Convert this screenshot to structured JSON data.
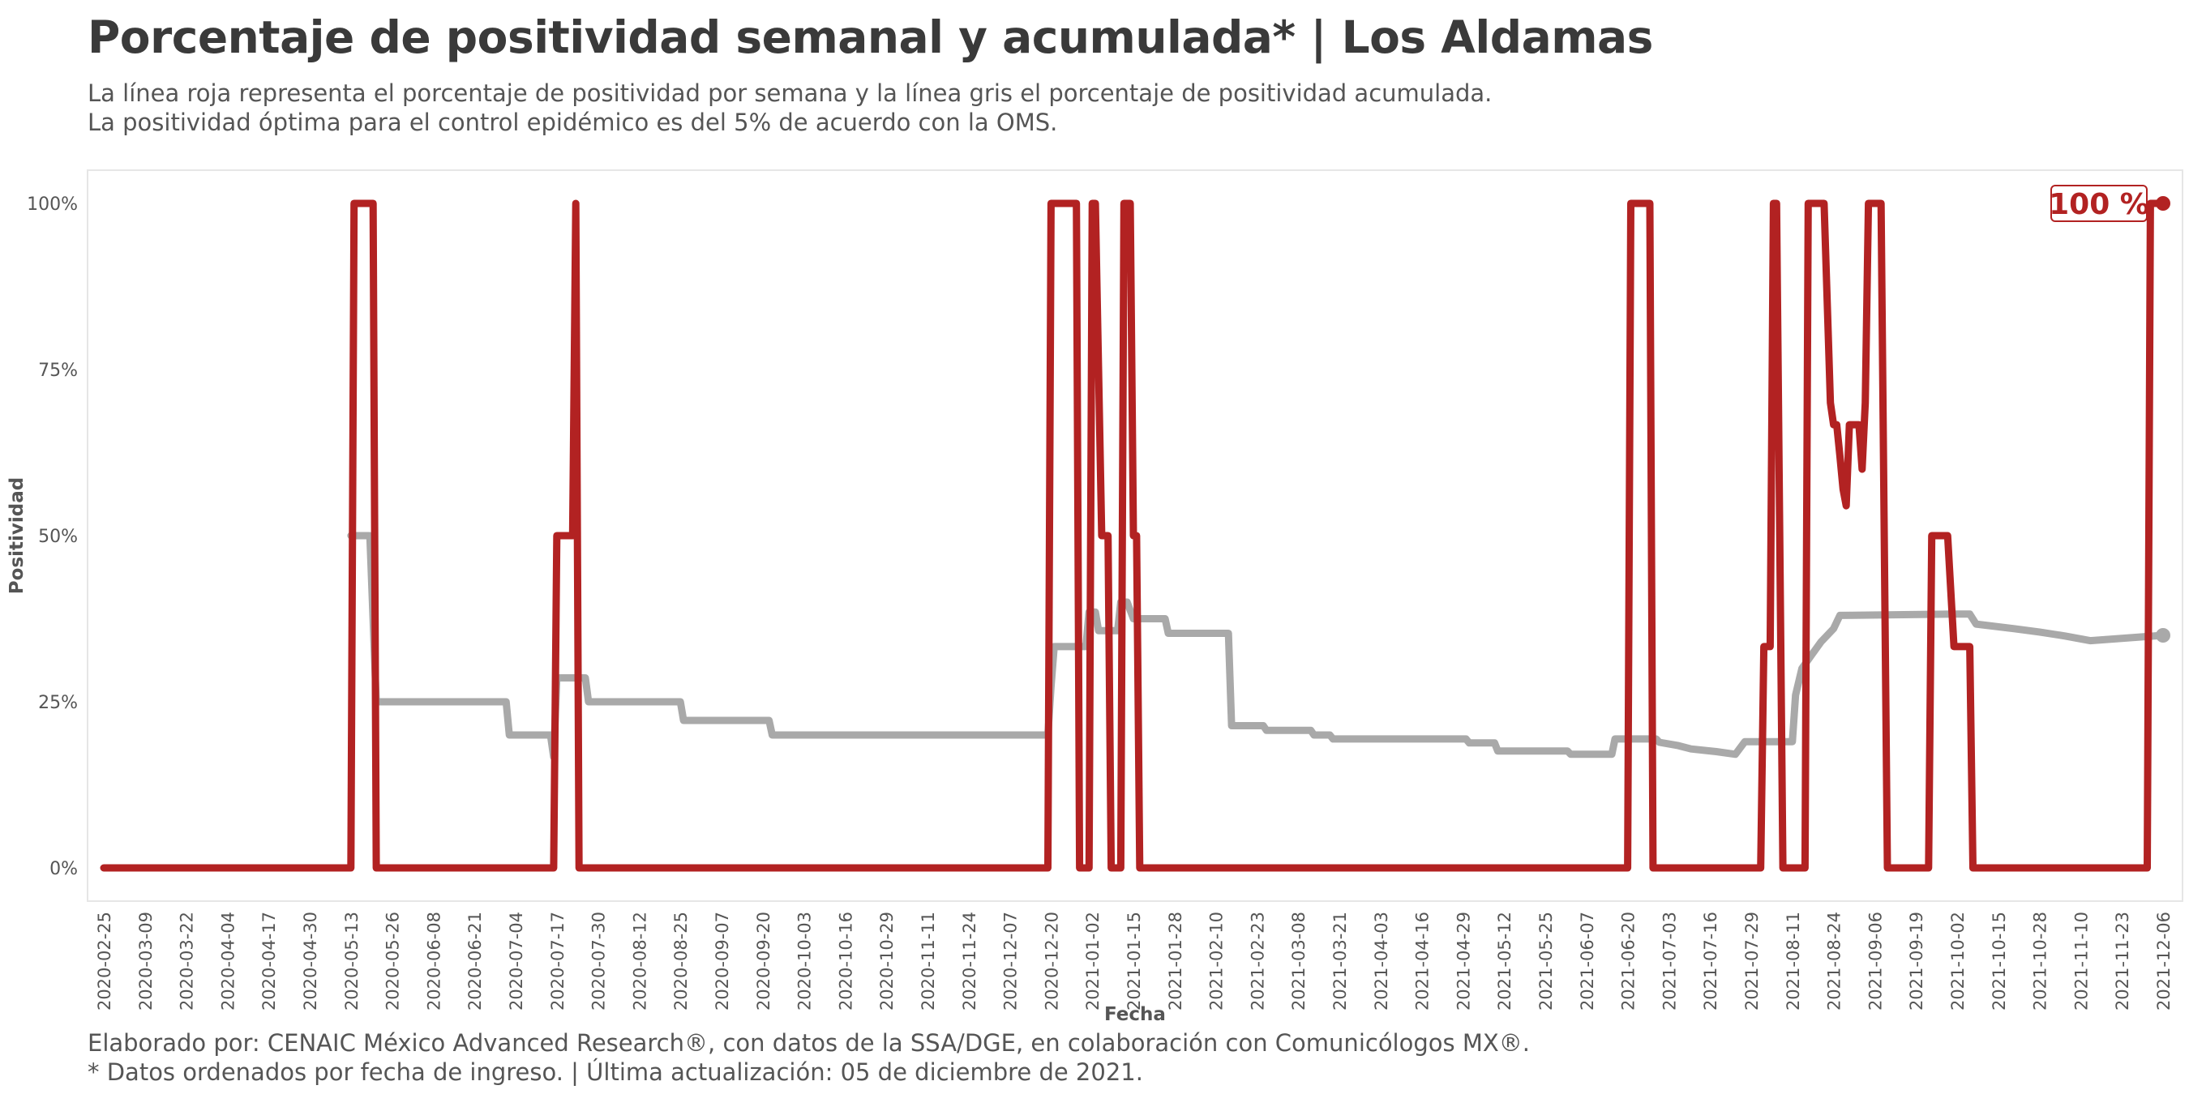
{
  "header": {
    "title": "Porcentaje de positividad semanal y acumulada* | Los Aldamas",
    "subtitle_line1": "La línea roja representa el porcentaje de positividad por semana y la línea gris el porcentaje de positividad acumulada.",
    "subtitle_line2": "La positividad óptima para el control epidémico es del 5% de acuerdo con la OMS."
  },
  "footer": {
    "caption_line1": "Elaborado por: CENAIC México Advanced Research®, con datos de la SSA/DGE, en colaboración con Comunicólogos MX®.",
    "caption_line2": "* Datos ordenados por fecha de ingreso. | Última actualización: 05 de diciembre de 2021."
  },
  "colors": {
    "weekly": "#b22222",
    "cumulative": "#a9a9a9",
    "panel_border": "#e6e6e6"
  },
  "chart_data": {
    "type": "line",
    "xlabel": "Fecha",
    "ylabel": "Positividad",
    "x_range": [
      "2020-02-25",
      "2021-12-06"
    ],
    "ylim": [
      0,
      100
    ],
    "y_ticks": [
      0,
      25,
      50,
      75,
      100
    ],
    "y_tick_labels": [
      "0%",
      "25%",
      "50%",
      "75%",
      "100%"
    ],
    "x_ticks": [
      "2020-02-25",
      "2020-03-09",
      "2020-03-22",
      "2020-04-04",
      "2020-04-17",
      "2020-04-30",
      "2020-05-13",
      "2020-05-26",
      "2020-06-08",
      "2020-06-21",
      "2020-07-04",
      "2020-07-17",
      "2020-07-30",
      "2020-08-12",
      "2020-08-25",
      "2020-09-07",
      "2020-09-20",
      "2020-10-03",
      "2020-10-16",
      "2020-10-29",
      "2020-11-11",
      "2020-11-24",
      "2020-12-07",
      "2020-12-20",
      "2021-01-02",
      "2021-01-15",
      "2021-01-28",
      "2021-02-10",
      "2021-02-23",
      "2021-03-08",
      "2021-03-21",
      "2021-04-03",
      "2021-04-16",
      "2021-04-29",
      "2021-05-12",
      "2021-05-25",
      "2021-06-07",
      "2021-06-20",
      "2021-07-03",
      "2021-07-16",
      "2021-07-29",
      "2021-08-11",
      "2021-08-24",
      "2021-09-06",
      "2021-09-19",
      "2021-10-02",
      "2021-10-15",
      "2021-10-28",
      "2021-11-10",
      "2021-11-23",
      "2021-12-06"
    ],
    "end_label": "100 %",
    "grid": false,
    "series": [
      {
        "key": "weekly",
        "points": [
          [
            "2020-02-25",
            0
          ],
          [
            "2020-05-13",
            0
          ],
          [
            "2020-05-14",
            100
          ],
          [
            "2020-05-20",
            100
          ],
          [
            "2020-05-21",
            0
          ],
          [
            "2020-07-16",
            0
          ],
          [
            "2020-07-17",
            50
          ],
          [
            "2020-07-22",
            50
          ],
          [
            "2020-07-23",
            100
          ],
          [
            "2020-07-24",
            0
          ],
          [
            "2020-12-19",
            0
          ],
          [
            "2020-12-20",
            100
          ],
          [
            "2020-12-28",
            100
          ],
          [
            "2020-12-29",
            0
          ],
          [
            "2021-01-01",
            0
          ],
          [
            "2021-01-02",
            100
          ],
          [
            "2021-01-03",
            100
          ],
          [
            "2021-01-05",
            50
          ],
          [
            "2021-01-07",
            50
          ],
          [
            "2021-01-08",
            0
          ],
          [
            "2021-01-11",
            0
          ],
          [
            "2021-01-12",
            100
          ],
          [
            "2021-01-14",
            100
          ],
          [
            "2021-01-15",
            50
          ],
          [
            "2021-01-16",
            50
          ],
          [
            "2021-01-17",
            0
          ],
          [
            "2021-06-20",
            0
          ],
          [
            "2021-06-21",
            100
          ],
          [
            "2021-06-27",
            100
          ],
          [
            "2021-06-28",
            0
          ],
          [
            "2021-08-01",
            0
          ],
          [
            "2021-08-02",
            33.3
          ],
          [
            "2021-08-04",
            33.3
          ],
          [
            "2021-08-05",
            100
          ],
          [
            "2021-08-06",
            100
          ],
          [
            "2021-08-08",
            0
          ],
          [
            "2021-08-15",
            0
          ],
          [
            "2021-08-16",
            100
          ],
          [
            "2021-08-21",
            100
          ],
          [
            "2021-08-23",
            70
          ],
          [
            "2021-08-24",
            66.7
          ],
          [
            "2021-08-25",
            66.7
          ],
          [
            "2021-08-26",
            62
          ],
          [
            "2021-08-27",
            57
          ],
          [
            "2021-08-28",
            54.5
          ],
          [
            "2021-08-29",
            66.7
          ],
          [
            "2021-09-01",
            66.7
          ],
          [
            "2021-09-02",
            60
          ],
          [
            "2021-09-03",
            70
          ],
          [
            "2021-09-04",
            100
          ],
          [
            "2021-09-08",
            100
          ],
          [
            "2021-09-10",
            0
          ],
          [
            "2021-09-23",
            0
          ],
          [
            "2021-09-24",
            50
          ],
          [
            "2021-09-29",
            50
          ],
          [
            "2021-10-01",
            33.3
          ],
          [
            "2021-10-06",
            33.3
          ],
          [
            "2021-10-07",
            0
          ],
          [
            "2021-12-01",
            0
          ],
          [
            "2021-12-02",
            100
          ],
          [
            "2021-12-06",
            100
          ]
        ]
      },
      {
        "key": "cumulative",
        "points": [
          [
            "2020-05-13",
            50
          ],
          [
            "2020-05-19",
            50
          ],
          [
            "2020-05-21",
            25
          ],
          [
            "2020-07-01",
            25
          ],
          [
            "2020-07-02",
            20
          ],
          [
            "2020-07-15",
            20
          ],
          [
            "2020-07-16",
            16.7
          ],
          [
            "2020-07-17",
            28.6
          ],
          [
            "2020-07-26",
            28.6
          ],
          [
            "2020-07-27",
            25
          ],
          [
            "2020-08-25",
            25
          ],
          [
            "2020-08-26",
            22.2
          ],
          [
            "2020-09-22",
            22.2
          ],
          [
            "2020-09-23",
            20
          ],
          [
            "2020-12-19",
            20
          ],
          [
            "2020-12-20",
            27.3
          ],
          [
            "2020-12-21",
            33.3
          ],
          [
            "2020-12-31",
            33.3
          ],
          [
            "2021-01-01",
            38.5
          ],
          [
            "2021-01-03",
            38.5
          ],
          [
            "2021-01-04",
            35.7
          ],
          [
            "2021-01-10",
            35.7
          ],
          [
            "2021-01-11",
            40
          ],
          [
            "2021-01-13",
            40
          ],
          [
            "2021-01-15",
            37.5
          ],
          [
            "2021-01-25",
            37.5
          ],
          [
            "2021-01-26",
            35.3
          ],
          [
            "2021-02-14",
            35.3
          ],
          [
            "2021-02-15",
            21.4
          ],
          [
            "2021-02-25",
            21.4
          ],
          [
            "2021-02-26",
            20.7
          ],
          [
            "2021-03-12",
            20.7
          ],
          [
            "2021-03-13",
            20
          ],
          [
            "2021-03-18",
            20
          ],
          [
            "2021-03-19",
            19.4
          ],
          [
            "2021-04-30",
            19.4
          ],
          [
            "2021-05-01",
            18.8
          ],
          [
            "2021-05-09",
            18.8
          ],
          [
            "2021-05-10",
            17.6
          ],
          [
            "2021-06-01",
            17.6
          ],
          [
            "2021-06-02",
            17.1
          ],
          [
            "2021-06-15",
            17.1
          ],
          [
            "2021-06-16",
            19.4
          ],
          [
            "2021-06-29",
            19.4
          ],
          [
            "2021-06-30",
            18.9
          ],
          [
            "2021-07-06",
            18.4
          ],
          [
            "2021-07-10",
            17.9
          ],
          [
            "2021-07-18",
            17.5
          ],
          [
            "2021-07-24",
            17.1
          ],
          [
            "2021-07-27",
            19
          ],
          [
            "2021-08-11",
            19
          ],
          [
            "2021-08-12",
            26
          ],
          [
            "2021-08-14",
            30
          ],
          [
            "2021-08-17",
            32
          ],
          [
            "2021-08-20",
            34
          ],
          [
            "2021-08-24",
            36
          ],
          [
            "2021-08-26",
            38
          ],
          [
            "2021-10-01",
            38.2
          ],
          [
            "2021-10-06",
            38.2
          ],
          [
            "2021-10-08",
            36.7
          ],
          [
            "2021-10-20",
            36
          ],
          [
            "2021-10-28",
            35.5
          ],
          [
            "2021-11-05",
            34.9
          ],
          [
            "2021-11-13",
            34.2
          ],
          [
            "2021-12-06",
            35
          ]
        ]
      }
    ]
  }
}
